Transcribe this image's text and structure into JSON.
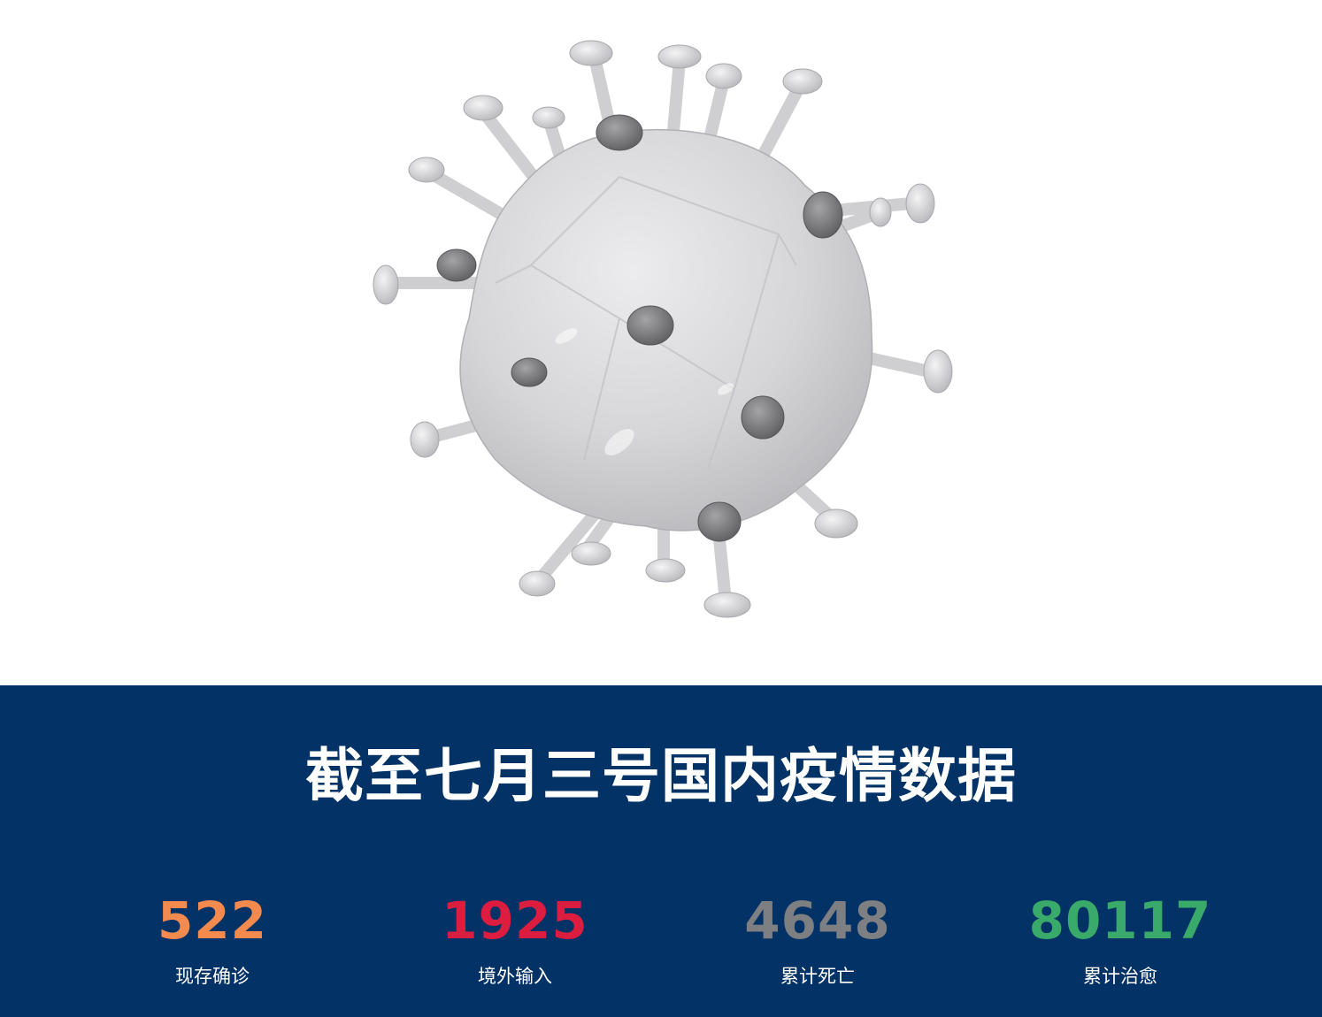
{
  "hero": {
    "image": "coronavirus-illustration",
    "colors": {
      "body": "#d9d9db",
      "body_shade": "#b9b9bd",
      "spike": "#d2d2d5",
      "spike_dark": "#808083"
    }
  },
  "panel": {
    "background": "#033266",
    "title": "截至七月三号国内疫情数据"
  },
  "stats": [
    {
      "value": "522",
      "label": "现存确诊",
      "color": "#f48a4d"
    },
    {
      "value": "1925",
      "label": "境外输入",
      "color": "#dc1d3f"
    },
    {
      "value": "4648",
      "label": "累计死亡",
      "color": "#7e7f82"
    },
    {
      "value": "80117",
      "label": "累计治愈",
      "color": "#3aaa6a"
    }
  ]
}
